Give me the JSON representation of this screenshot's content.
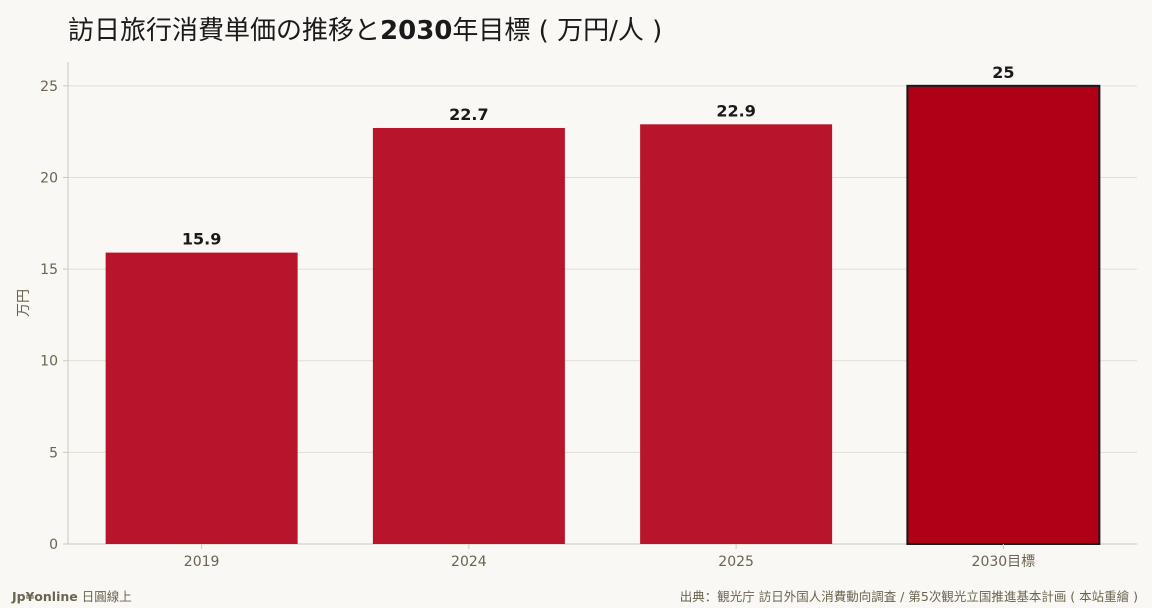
{
  "title": {
    "part1": "訪日旅行消費単価の推移と",
    "part2": "2030",
    "part3": "年目標 ( 万円/人 )"
  },
  "footer": {
    "brand": "Jp¥online",
    "brand_suffix": " 日圓線上",
    "source": "出典：観光庁 訪日外国人消費動向調査 / 第5次観光立国推進基本計画 ( 本站重繪 )"
  },
  "colors": {
    "bar": "#b8142b",
    "target_bar": "#b00018",
    "target_border": "#1a1a1a",
    "grid": "#e2ddd2",
    "axis": "#cfc8ba",
    "tick_text": "#6b6450",
    "label_text": "#1a1a1a"
  },
  "chart_data": {
    "type": "bar",
    "categories": [
      "2019",
      "2024",
      "2025",
      "2030目標"
    ],
    "values": [
      15.9,
      22.7,
      22.9,
      25
    ],
    "value_labels": [
      "15.9",
      "22.7",
      "22.9",
      "25"
    ],
    "highlight_index": 3,
    "ylabel": "万円",
    "xlabel": "",
    "ylim": [
      0,
      26.3
    ],
    "yticks": [
      0,
      5,
      10,
      15,
      20,
      25
    ],
    "grid": true
  }
}
